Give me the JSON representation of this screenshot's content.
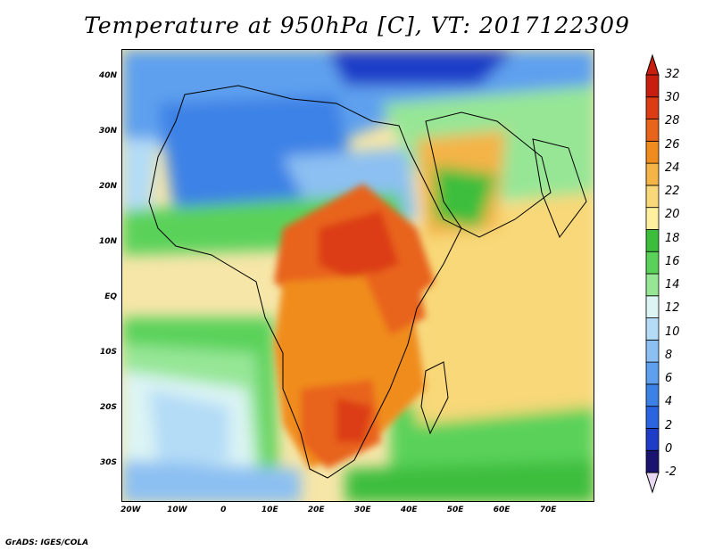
{
  "title": "Temperature at 950hPa [C], VT: 2017122309",
  "credit": "GrADS: IGES/COLA",
  "map": {
    "lat_labels": [
      "40N",
      "30N",
      "20N",
      "10N",
      "EQ",
      "10S",
      "20S",
      "30S"
    ],
    "lat_values": [
      40,
      30,
      20,
      10,
      0,
      -10,
      -20,
      -30
    ],
    "lon_labels": [
      "20W",
      "10W",
      "0",
      "10E",
      "20E",
      "30E",
      "40E",
      "50E",
      "60E",
      "70E"
    ],
    "lon_values": [
      -20,
      -10,
      0,
      10,
      20,
      30,
      40,
      50,
      60,
      70
    ],
    "lon_range": [
      -22,
      80
    ],
    "lat_range": [
      -37,
      45
    ],
    "ocean_color": "#f2e19a",
    "land_outline_color": "#000000"
  },
  "colorbar": {
    "labels": [
      "-2",
      "0",
      "2",
      "4",
      "6",
      "8",
      "10",
      "12",
      "14",
      "16",
      "18",
      "20",
      "22",
      "24",
      "26",
      "28",
      "30",
      "32"
    ],
    "colors": [
      "#1a1470",
      "#1e3cc8",
      "#2a64e0",
      "#3c82e6",
      "#5ea0ee",
      "#8cc0f2",
      "#b4dcf6",
      "#dcf4f4",
      "#96e696",
      "#5ad25a",
      "#3cbe3c",
      "#fff0a0",
      "#f8d878",
      "#f4b446",
      "#f08c1e",
      "#e8641a",
      "#dc3c14",
      "#c81e10"
    ],
    "under_color": "#e6d8f0",
    "over_color": "#c81e10"
  }
}
